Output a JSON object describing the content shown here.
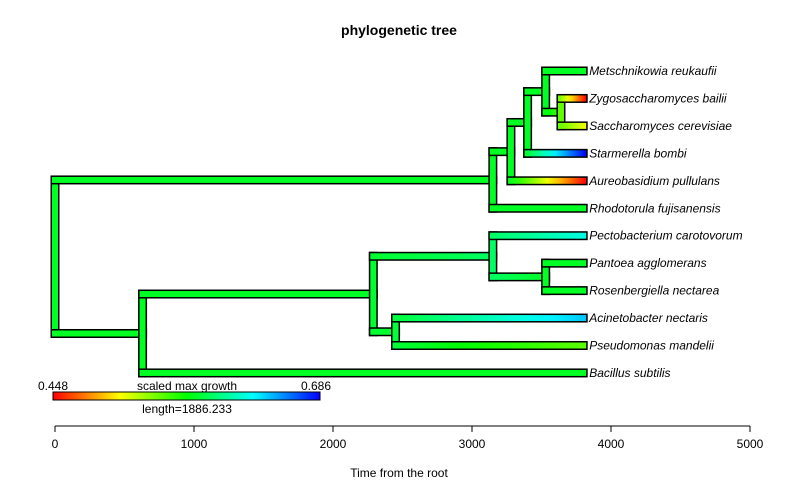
{
  "title": "phylogenetic tree",
  "xlabel": "Time from the root",
  "legend": {
    "min_label": "0.448",
    "max_label": "0.686",
    "title": "scaled max growth",
    "length_label": "length=1886.233",
    "min": 0.448,
    "max": 0.686,
    "length": 1886.233,
    "palette": [
      "#ff0000",
      "#ffff00",
      "#00ff00",
      "#00ffff",
      "#0000ff"
    ]
  },
  "x_axis": {
    "ticks": [
      0,
      1000,
      2000,
      3000,
      4000,
      5000
    ],
    "tick_labels": [
      "0",
      "1000",
      "2000",
      "3000",
      "4000",
      "5000"
    ],
    "range": [
      0,
      5000
    ]
  },
  "tips": [
    {
      "name": "Metschnikowia reukaufii",
      "value": 0.58
    },
    {
      "name": "Zygosaccharomyces bailii",
      "value": 0.448
    },
    {
      "name": "Saccharomyces cerevisiae",
      "value": 0.51
    },
    {
      "name": "Starmerella bombi",
      "value": 0.686
    },
    {
      "name": "Aureobasidium pullulans",
      "value": 0.448
    },
    {
      "name": "Rhodotorula fujisanensis",
      "value": 0.575
    },
    {
      "name": "Pectobacterium carotovorum",
      "value": 0.62
    },
    {
      "name": "Pantoea agglomerans",
      "value": 0.575
    },
    {
      "name": "Rosenbergiella nectarea",
      "value": 0.575
    },
    {
      "name": "Acinetobacter nectaris",
      "value": 0.64
    },
    {
      "name": "Pseudomonas mandelii",
      "value": 0.545
    },
    {
      "name": "Bacillus subtilis",
      "value": 0.575
    }
  ],
  "tree": {
    "age": 0,
    "value": 0.575,
    "children": [
      {
        "age": 3150,
        "value": 0.575,
        "children": [
          {
            "age": 3280,
            "value": 0.575,
            "children": [
              {
                "age": 3400,
                "value": 0.575,
                "children": [
                  {
                    "age": 3530,
                    "value": 0.575,
                    "children": [
                      {
                        "tip": 0,
                        "age": 3800
                      },
                      {
                        "age": 3640,
                        "value": 0.545,
                        "children": [
                          {
                            "tip": 1,
                            "age": 3800
                          },
                          {
                            "tip": 2,
                            "age": 3800
                          }
                        ]
                      }
                    ]
                  },
                  {
                    "tip": 3,
                    "age": 3800
                  }
                ]
              },
              {
                "tip": 4,
                "age": 3800
              }
            ]
          },
          {
            "tip": 5,
            "age": 3800
          }
        ]
      },
      {
        "age": 630,
        "value": 0.575,
        "children": [
          {
            "age": 2290,
            "value": 0.578,
            "children": [
              {
                "age": 3150,
                "value": 0.59,
                "children": [
                  {
                    "tip": 6,
                    "age": 3800
                  },
                  {
                    "age": 3530,
                    "value": 0.575,
                    "children": [
                      {
                        "tip": 7,
                        "age": 3800
                      },
                      {
                        "tip": 8,
                        "age": 3800
                      }
                    ]
                  }
                ]
              },
              {
                "age": 2450,
                "value": 0.58,
                "children": [
                  {
                    "tip": 9,
                    "age": 3800
                  },
                  {
                    "tip": 10,
                    "age": 3800
                  }
                ]
              }
            ]
          },
          {
            "tip": 11,
            "age": 3800
          }
        ]
      }
    ]
  }
}
